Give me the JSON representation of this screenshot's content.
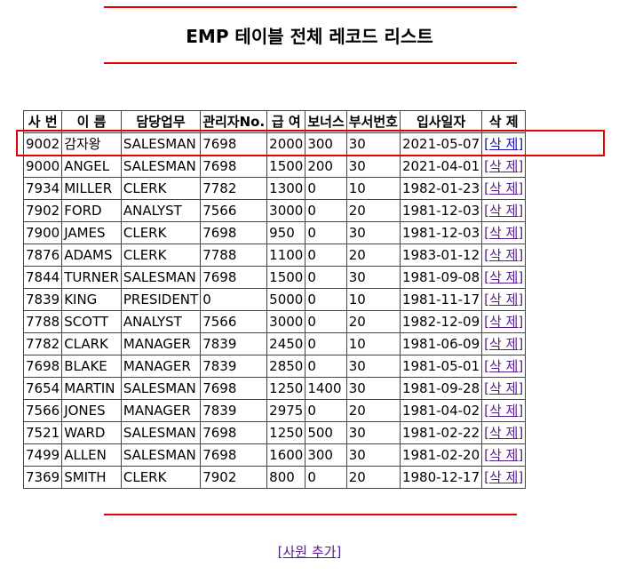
{
  "title": "EMP 테이블 전체 레코드 리스트",
  "columns": [
    "사 번",
    "이 름",
    "담당업무",
    "관리자No.",
    "급 여",
    "보너스",
    "부서번호",
    "입사일자",
    "삭 제"
  ],
  "rows": [
    [
      "9002",
      "감자왕",
      "SALESMAN",
      "7698",
      "2000",
      "300",
      "30",
      "2021-05-07",
      "[삭 제]"
    ],
    [
      "9000",
      "ANGEL",
      "SALESMAN",
      "7698",
      "1500",
      "200",
      "30",
      "2021-04-01",
      "[삭 제]"
    ],
    [
      "7934",
      "MILLER",
      "CLERK",
      "7782",
      "1300",
      "0",
      "10",
      "1982-01-23",
      "[삭 제]"
    ],
    [
      "7902",
      "FORD",
      "ANALYST",
      "7566",
      "3000",
      "0",
      "20",
      "1981-12-03",
      "[삭 제]"
    ],
    [
      "7900",
      "JAMES",
      "CLERK",
      "7698",
      "950",
      "0",
      "30",
      "1981-12-03",
      "[삭 제]"
    ],
    [
      "7876",
      "ADAMS",
      "CLERK",
      "7788",
      "1100",
      "0",
      "20",
      "1983-01-12",
      "[삭 제]"
    ],
    [
      "7844",
      "TURNER",
      "SALESMAN",
      "7698",
      "1500",
      "0",
      "30",
      "1981-09-08",
      "[삭 제]"
    ],
    [
      "7839",
      "KING",
      "PRESIDENT",
      "0",
      "5000",
      "0",
      "10",
      "1981-11-17",
      "[삭 제]"
    ],
    [
      "7788",
      "SCOTT",
      "ANALYST",
      "7566",
      "3000",
      "0",
      "20",
      "1982-12-09",
      "[삭 제]"
    ],
    [
      "7782",
      "CLARK",
      "MANAGER",
      "7839",
      "2450",
      "0",
      "10",
      "1981-06-09",
      "[삭 제]"
    ],
    [
      "7698",
      "BLAKE",
      "MANAGER",
      "7839",
      "2850",
      "0",
      "30",
      "1981-05-01",
      "[삭 제]"
    ],
    [
      "7654",
      "MARTIN",
      "SALESMAN",
      "7698",
      "1250",
      "1400",
      "30",
      "1981-09-28",
      "[삭 제]"
    ],
    [
      "7566",
      "JONES",
      "MANAGER",
      "7839",
      "2975",
      "0",
      "20",
      "1981-04-02",
      "[삭 제]"
    ],
    [
      "7521",
      "WARD",
      "SALESMAN",
      "7698",
      "1250",
      "500",
      "30",
      "1981-02-22",
      "[삭 제]"
    ],
    [
      "7499",
      "ALLEN",
      "SALESMAN",
      "7698",
      "1600",
      "300",
      "30",
      "1981-02-20",
      "[삭 제]"
    ],
    [
      "7369",
      "SMITH",
      "CLERK",
      "7902",
      "800",
      "0",
      "20",
      "1980-12-17",
      "[삭 제]"
    ]
  ],
  "add_link": "[사원 추가]",
  "colors": {
    "rule": "#e60000",
    "highlight": "#e00000",
    "link": "#1a0dab",
    "visited_link": "#551a8b"
  }
}
